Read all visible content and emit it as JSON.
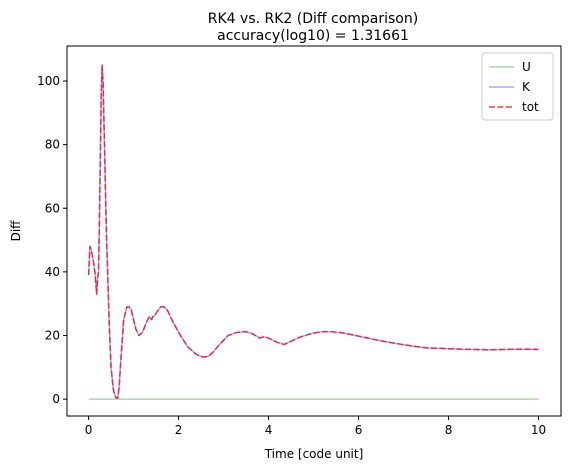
{
  "chart_data": {
    "type": "line",
    "title": "RK4 vs. RK2 (Diff comparison)",
    "subtitle": "accuracy(log10) = 1.31661",
    "xlabel": "Time [code unit]",
    "ylabel": "Diff",
    "xlim": [
      -0.48,
      10.5
    ],
    "ylim": [
      -5.3,
      111
    ],
    "xticks": [
      0,
      2,
      4,
      6,
      8,
      10
    ],
    "yticks": [
      0,
      20,
      40,
      60,
      80,
      100
    ],
    "grid": false,
    "legend_position": "top-right",
    "series": [
      {
        "name": "U",
        "color": "#2ca02c",
        "style": "solid",
        "x": [
          0,
          10
        ],
        "y": [
          0,
          0
        ]
      },
      {
        "name": "K",
        "color": "#0000ff",
        "style": "solid",
        "x": [
          0,
          0.03,
          0.06,
          0.1,
          0.14,
          0.18,
          0.2,
          0.22,
          0.24,
          0.26,
          0.28,
          0.3,
          0.32,
          0.34,
          0.36,
          0.38,
          0.4,
          0.43,
          0.46,
          0.5,
          0.55,
          0.6,
          0.65,
          0.68,
          0.72,
          0.78,
          0.85,
          0.9,
          0.95,
          1.0,
          1.05,
          1.12,
          1.2,
          1.28,
          1.35,
          1.4,
          1.43,
          1.46,
          1.5,
          1.55,
          1.6,
          1.68,
          1.75,
          1.85,
          2.0,
          2.2,
          2.4,
          2.55,
          2.65,
          2.75,
          2.9,
          3.1,
          3.3,
          3.5,
          3.65,
          3.8,
          3.9,
          3.95,
          4.0,
          4.1,
          4.2,
          4.35,
          4.5,
          4.7,
          5.0,
          5.2,
          5.4,
          5.6,
          5.8,
          6.0,
          6.5,
          7.0,
          7.5,
          7.9,
          8.3,
          8.6,
          8.9,
          9.2,
          9.5,
          9.8,
          10.0
        ],
        "y": [
          39,
          48,
          47,
          44,
          40,
          33,
          38,
          40,
          55,
          75,
          95,
          105,
          100,
          88,
          76,
          62,
          50,
          37,
          23,
          10,
          3,
          0.5,
          0.3,
          4,
          13,
          25,
          29,
          29,
          28,
          25,
          22,
          20,
          21,
          24,
          26,
          25,
          26,
          26,
          27,
          28,
          29,
          29,
          28,
          25,
          21,
          16.5,
          14,
          13.2,
          13.4,
          14.5,
          17,
          20,
          21,
          21.2,
          20.5,
          19.2,
          19.6,
          19.4,
          19.2,
          18.5,
          17.8,
          17.2,
          18.2,
          19.5,
          20.8,
          21.2,
          21.2,
          20.9,
          20.4,
          19.8,
          18.3,
          17.1,
          16.1,
          15.9,
          15.7,
          15.6,
          15.5,
          15.6,
          15.7,
          15.7,
          15.6
        ]
      },
      {
        "name": "tot",
        "color": "#ff0000",
        "style": "dashed",
        "x": [
          0,
          0.03,
          0.06,
          0.1,
          0.14,
          0.18,
          0.2,
          0.22,
          0.24,
          0.26,
          0.28,
          0.3,
          0.32,
          0.34,
          0.36,
          0.38,
          0.4,
          0.43,
          0.46,
          0.5,
          0.55,
          0.6,
          0.65,
          0.68,
          0.72,
          0.78,
          0.85,
          0.9,
          0.95,
          1.0,
          1.05,
          1.12,
          1.2,
          1.28,
          1.35,
          1.4,
          1.43,
          1.46,
          1.5,
          1.55,
          1.6,
          1.68,
          1.75,
          1.85,
          2.0,
          2.2,
          2.4,
          2.55,
          2.65,
          2.75,
          2.9,
          3.1,
          3.3,
          3.5,
          3.65,
          3.8,
          3.9,
          3.95,
          4.0,
          4.1,
          4.2,
          4.35,
          4.5,
          4.7,
          5.0,
          5.2,
          5.4,
          5.6,
          5.8,
          6.0,
          6.5,
          7.0,
          7.5,
          7.9,
          8.3,
          8.6,
          8.9,
          9.2,
          9.5,
          9.8,
          10.0
        ],
        "y": [
          39,
          48,
          47,
          44,
          40,
          33,
          38,
          40,
          55,
          75,
          95,
          105,
          100,
          88,
          76,
          62,
          50,
          37,
          23,
          10,
          3,
          0.5,
          0.3,
          4,
          13,
          25,
          29,
          29,
          28,
          25,
          22,
          20,
          21,
          24,
          26,
          25,
          26,
          26,
          27,
          28,
          29,
          29,
          28,
          25,
          21,
          16.5,
          14,
          13.2,
          13.4,
          14.5,
          17,
          20,
          21,
          21.2,
          20.5,
          19.2,
          19.6,
          19.4,
          19.2,
          18.5,
          17.8,
          17.2,
          18.2,
          19.5,
          20.8,
          21.2,
          21.2,
          20.9,
          20.4,
          19.8,
          18.3,
          17.1,
          16.1,
          15.9,
          15.7,
          15.6,
          15.5,
          15.6,
          15.7,
          15.7,
          15.6
        ]
      }
    ]
  }
}
